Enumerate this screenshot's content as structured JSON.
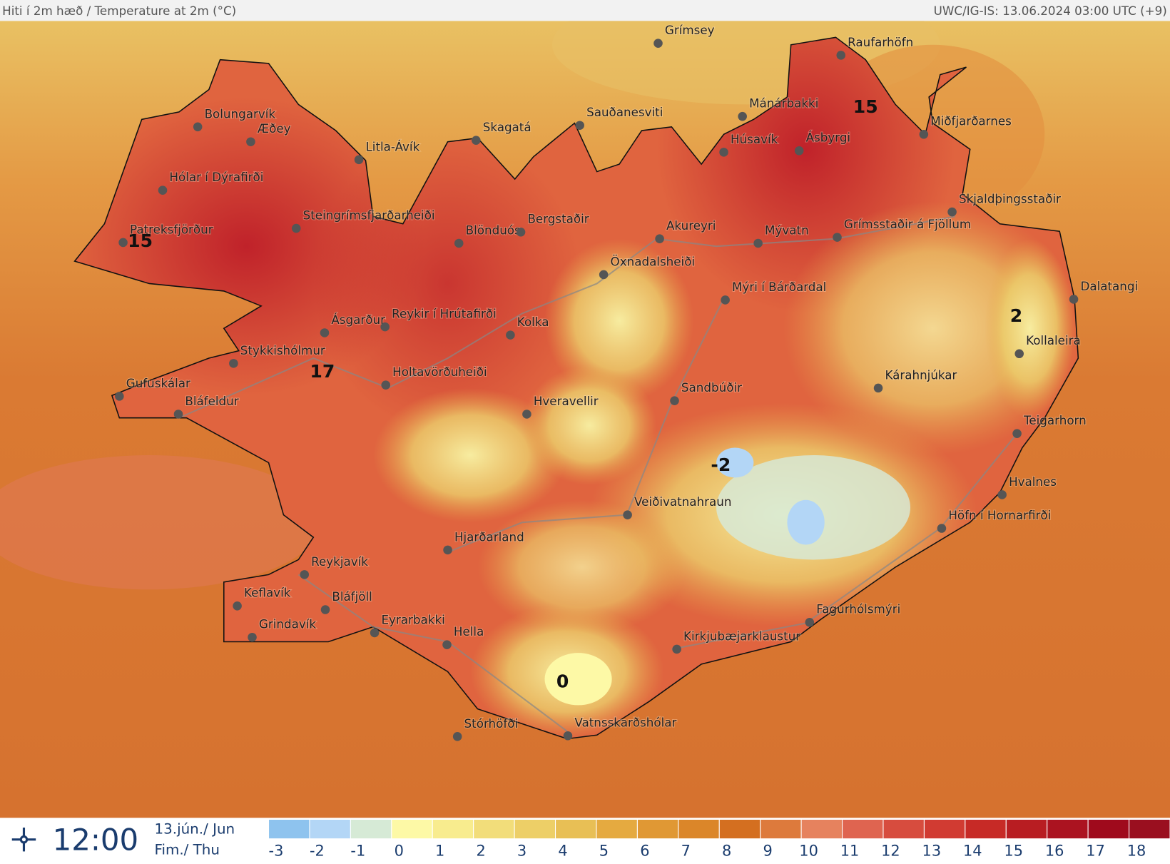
{
  "header": {
    "title": "Hiti í 2m hæð / Temperature at 2m (°C)",
    "source": "UWC/IG-IS: 13.06.2024 03:00 UTC (+9)"
  },
  "stations": [
    "Grímsey",
    "Raufarhöfn",
    "Bolungarvík",
    "Æðey",
    "Litla-Ávík",
    "Skagatá",
    "Sauðanesviti",
    "Mánárbakki",
    "Miðfjarðarnes",
    "Húsavík",
    "Ásbyrgi",
    "Hólar í Dýrafirði",
    "Steingrímsfjarðarheiði",
    "Blönduós",
    "Bergstaðir",
    "Akureyri",
    "Skjaldþingsstaðir",
    "Grímsstaðir á Fjöllum",
    "Mývatn",
    "Patreksfjörður",
    "Öxnadalsheiði",
    "Mýri í Bárðardal",
    "Dalatangi",
    "Ásgarður",
    "Reykir í Hrútafirði",
    "Kolka",
    "Kollaleira",
    "Stykkishólmur",
    "Holtavörðuheiði",
    "Kárahnjúkar",
    "Gufuskálar",
    "Sandbúðir",
    "Hveravellir",
    "Bláfeldur",
    "Teigarhorn",
    "Hvalnes",
    "Veiðivatnahraun",
    "Höfn í Hornarfirði",
    "Hjarðarland",
    "Reykjavík",
    "Keflavík",
    "Bláfjöll",
    "Fagurhólsmýri",
    "Grindavík",
    "Eyrarbakki",
    "Hella",
    "Kirkjubæjarklaustur",
    "Stórhöfði",
    "Vatnsskarðshólar"
  ],
  "temperature_labels": [
    15,
    15,
    17,
    2,
    -2,
    0
  ],
  "footer": {
    "time": "12:00",
    "date_line1": "13.jún./ Jun",
    "date_line2": "Fim./ Thu"
  },
  "legend": [
    {
      "value": -3,
      "color": "#8ec3ee"
    },
    {
      "value": -2,
      "color": "#b3d6f6"
    },
    {
      "value": -1,
      "color": "#d6ead6"
    },
    {
      "value": 0,
      "color": "#fdf9a6"
    },
    {
      "value": 1,
      "color": "#f8ec8e"
    },
    {
      "value": 2,
      "color": "#f2dd7a"
    },
    {
      "value": 3,
      "color": "#edcf67"
    },
    {
      "value": 4,
      "color": "#e8bf55"
    },
    {
      "value": 5,
      "color": "#e5aa40"
    },
    {
      "value": 6,
      "color": "#e09834"
    },
    {
      "value": 7,
      "color": "#db8629"
    },
    {
      "value": 8,
      "color": "#d46f20"
    },
    {
      "value": 9,
      "color": "#dd7a3c"
    },
    {
      "value": 10,
      "color": "#e6825e"
    },
    {
      "value": 11,
      "color": "#df6450"
    },
    {
      "value": 12,
      "color": "#d74c3e"
    },
    {
      "value": 13,
      "color": "#d13b32"
    },
    {
      "value": 14,
      "color": "#c72a26"
    },
    {
      "value": 15,
      "color": "#b81d22"
    },
    {
      "value": 16,
      "color": "#ab1320"
    },
    {
      "value": 17,
      "color": "#9f0a1c"
    },
    {
      "value": 18,
      "color": "#9a0f1f"
    }
  ]
}
